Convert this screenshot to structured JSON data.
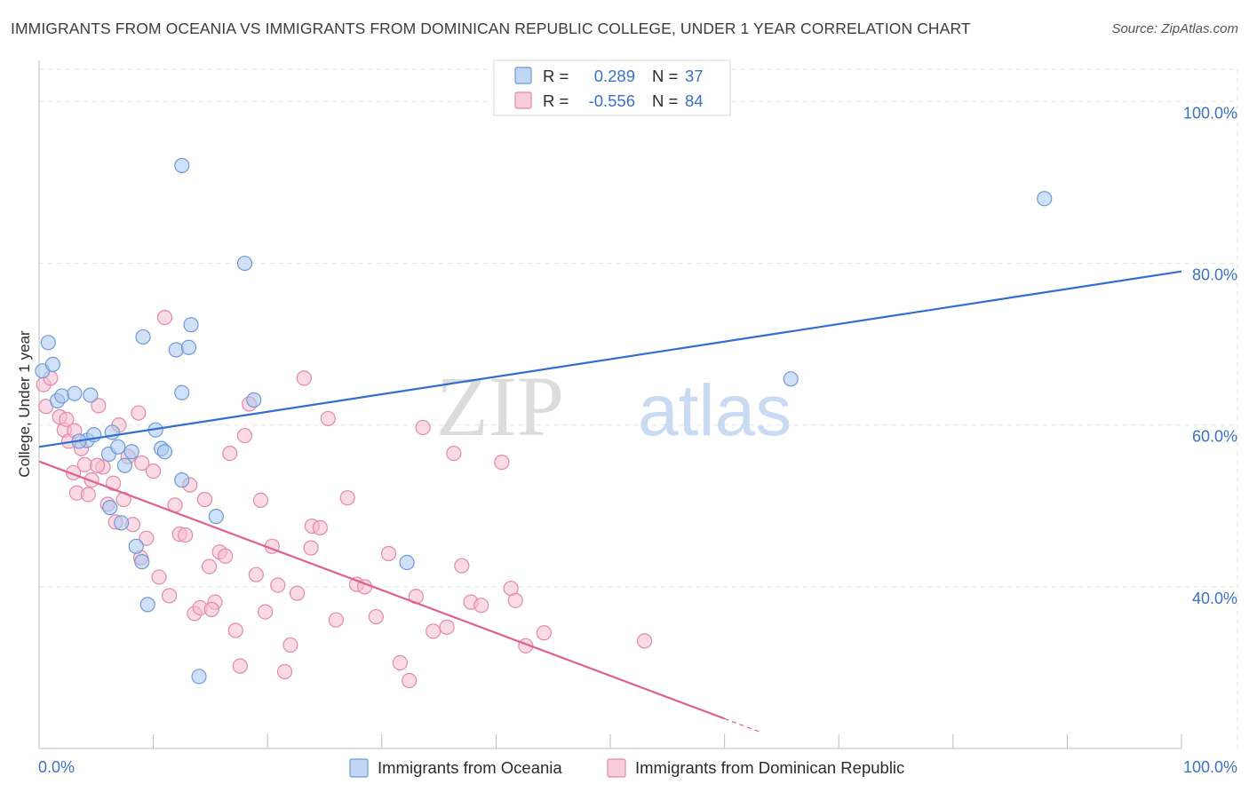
{
  "title": "IMMIGRANTS FROM OCEANIA VS IMMIGRANTS FROM DOMINICAN REPUBLIC COLLEGE, UNDER 1 YEAR CORRELATION CHART",
  "source": "Source: ZipAtlas.com",
  "colors": {
    "oceania_fill": "#a9c8f0",
    "oceania_stroke": "#6f9ad6",
    "oceania_line": "#2f6fcf",
    "dominican_fill": "#f6bccd",
    "dominican_stroke": "#e48aa8",
    "dominican_line": "#e0608e",
    "grid": "#e2e2e2",
    "tick_text": "#3a72c4"
  },
  "legend": {
    "r_label": "R =",
    "n_label": "N =",
    "rows": [
      {
        "r": "0.289",
        "n": "37"
      },
      {
        "r": "-0.556",
        "n": "84"
      }
    ]
  },
  "watermark": {
    "zip": "ZIP",
    "atlas": "atlas"
  },
  "chart_data": {
    "type": "scatter",
    "title": "IMMIGRANTS FROM OCEANIA VS IMMIGRANTS FROM DOMINICAN REPUBLIC COLLEGE, UNDER 1 YEAR CORRELATION CHART",
    "xlabel": "",
    "ylabel": "College, Under 1 year",
    "xlim": [
      0,
      100
    ],
    "ylim": [
      20,
      104
    ],
    "x_ticks": [
      "0.0%",
      "100.0%"
    ],
    "y_ticks": [
      {
        "value": 40,
        "label": "40.0%"
      },
      {
        "value": 60,
        "label": "60.0%"
      },
      {
        "value": 80,
        "label": "80.0%"
      },
      {
        "value": 100,
        "label": "100.0%"
      }
    ],
    "grid": true,
    "legend_position": "top-center",
    "series": [
      {
        "name": "Immigrants from Oceania",
        "r": 0.289,
        "n": 37,
        "trend": {
          "x": [
            0,
            100
          ],
          "y": [
            57.3,
            79.0
          ],
          "dashed_from": null
        },
        "points": [
          [
            0.3,
            66.7
          ],
          [
            0.8,
            70.2
          ],
          [
            1.2,
            67.5
          ],
          [
            1.6,
            63.0
          ],
          [
            2.0,
            63.6
          ],
          [
            3.1,
            63.9
          ],
          [
            4.2,
            58.1
          ],
          [
            4.5,
            63.7
          ],
          [
            3.5,
            58.0
          ],
          [
            4.8,
            58.8
          ],
          [
            6.4,
            59.1
          ],
          [
            6.1,
            56.4
          ],
          [
            6.9,
            57.3
          ],
          [
            7.5,
            55.0
          ],
          [
            8.1,
            56.7
          ],
          [
            8.5,
            45.0
          ],
          [
            7.2,
            47.9
          ],
          [
            6.2,
            49.8
          ],
          [
            9.0,
            43.1
          ],
          [
            9.5,
            37.8
          ],
          [
            10.2,
            59.4
          ],
          [
            10.7,
            57.1
          ],
          [
            11.0,
            56.7
          ],
          [
            12.0,
            69.3
          ],
          [
            12.5,
            64.0
          ],
          [
            9.1,
            70.9
          ],
          [
            13.1,
            69.6
          ],
          [
            13.3,
            72.4
          ],
          [
            12.5,
            92.1
          ],
          [
            15.5,
            48.7
          ],
          [
            18.0,
            80.0
          ],
          [
            18.8,
            63.1
          ],
          [
            14.0,
            28.9
          ],
          [
            12.5,
            53.2
          ],
          [
            32.2,
            43.0
          ],
          [
            65.8,
            65.7
          ],
          [
            88.0,
            88.0
          ]
        ]
      },
      {
        "name": "Immigrants from Dominican Republic",
        "r": -0.556,
        "n": 84,
        "trend": {
          "x": [
            0,
            63.0
          ],
          "y": [
            55.5,
            22.1
          ],
          "dashed_from": 60.0
        },
        "points": [
          [
            0.4,
            65.0
          ],
          [
            0.6,
            62.3
          ],
          [
            1.0,
            65.8
          ],
          [
            1.8,
            61.0
          ],
          [
            2.2,
            59.4
          ],
          [
            2.6,
            58.0
          ],
          [
            3.0,
            54.1
          ],
          [
            3.3,
            51.6
          ],
          [
            3.7,
            57.1
          ],
          [
            4.0,
            55.1
          ],
          [
            4.3,
            51.4
          ],
          [
            4.6,
            53.2
          ],
          [
            5.2,
            62.4
          ],
          [
            5.6,
            54.8
          ],
          [
            6.0,
            50.2
          ],
          [
            6.5,
            52.8
          ],
          [
            7.0,
            60.0
          ],
          [
            7.4,
            50.8
          ],
          [
            7.8,
            56.1
          ],
          [
            8.2,
            47.7
          ],
          [
            8.7,
            61.5
          ],
          [
            9.0,
            55.3
          ],
          [
            9.4,
            46.0
          ],
          [
            10.0,
            54.3
          ],
          [
            10.5,
            41.2
          ],
          [
            11.0,
            73.3
          ],
          [
            11.4,
            38.9
          ],
          [
            11.9,
            50.1
          ],
          [
            12.3,
            46.5
          ],
          [
            12.8,
            46.4
          ],
          [
            13.2,
            52.6
          ],
          [
            13.6,
            36.7
          ],
          [
            14.1,
            37.4
          ],
          [
            14.5,
            50.8
          ],
          [
            14.9,
            42.5
          ],
          [
            15.4,
            38.1
          ],
          [
            15.8,
            44.3
          ],
          [
            16.3,
            43.8
          ],
          [
            16.7,
            56.5
          ],
          [
            17.2,
            34.6
          ],
          [
            17.6,
            30.2
          ],
          [
            18.0,
            58.7
          ],
          [
            18.4,
            62.6
          ],
          [
            19.0,
            41.5
          ],
          [
            19.4,
            50.7
          ],
          [
            19.8,
            36.9
          ],
          [
            20.4,
            45.0
          ],
          [
            20.9,
            40.2
          ],
          [
            21.5,
            29.5
          ],
          [
            22.0,
            32.8
          ],
          [
            22.6,
            39.2
          ],
          [
            23.2,
            65.8
          ],
          [
            23.9,
            47.5
          ],
          [
            24.6,
            47.3
          ],
          [
            25.3,
            60.8
          ],
          [
            26.0,
            35.9
          ],
          [
            27.0,
            51.0
          ],
          [
            27.8,
            40.3
          ],
          [
            28.5,
            40.0
          ],
          [
            29.5,
            36.3
          ],
          [
            30.6,
            44.1
          ],
          [
            31.6,
            30.6
          ],
          [
            32.4,
            28.4
          ],
          [
            33.0,
            38.8
          ],
          [
            33.6,
            59.7
          ],
          [
            34.5,
            34.5
          ],
          [
            35.7,
            35.0
          ],
          [
            36.3,
            56.5
          ],
          [
            37.0,
            42.6
          ],
          [
            37.8,
            38.1
          ],
          [
            38.7,
            37.7
          ],
          [
            40.5,
            55.4
          ],
          [
            41.3,
            39.8
          ],
          [
            41.7,
            38.3
          ],
          [
            42.6,
            32.7
          ],
          [
            44.2,
            34.3
          ],
          [
            5.1,
            55.0
          ],
          [
            6.7,
            48.0
          ],
          [
            8.9,
            43.6
          ],
          [
            15.1,
            37.2
          ],
          [
            23.8,
            44.8
          ],
          [
            53.0,
            33.3
          ],
          [
            2.4,
            60.7
          ],
          [
            3.1,
            59.3
          ]
        ]
      }
    ]
  }
}
